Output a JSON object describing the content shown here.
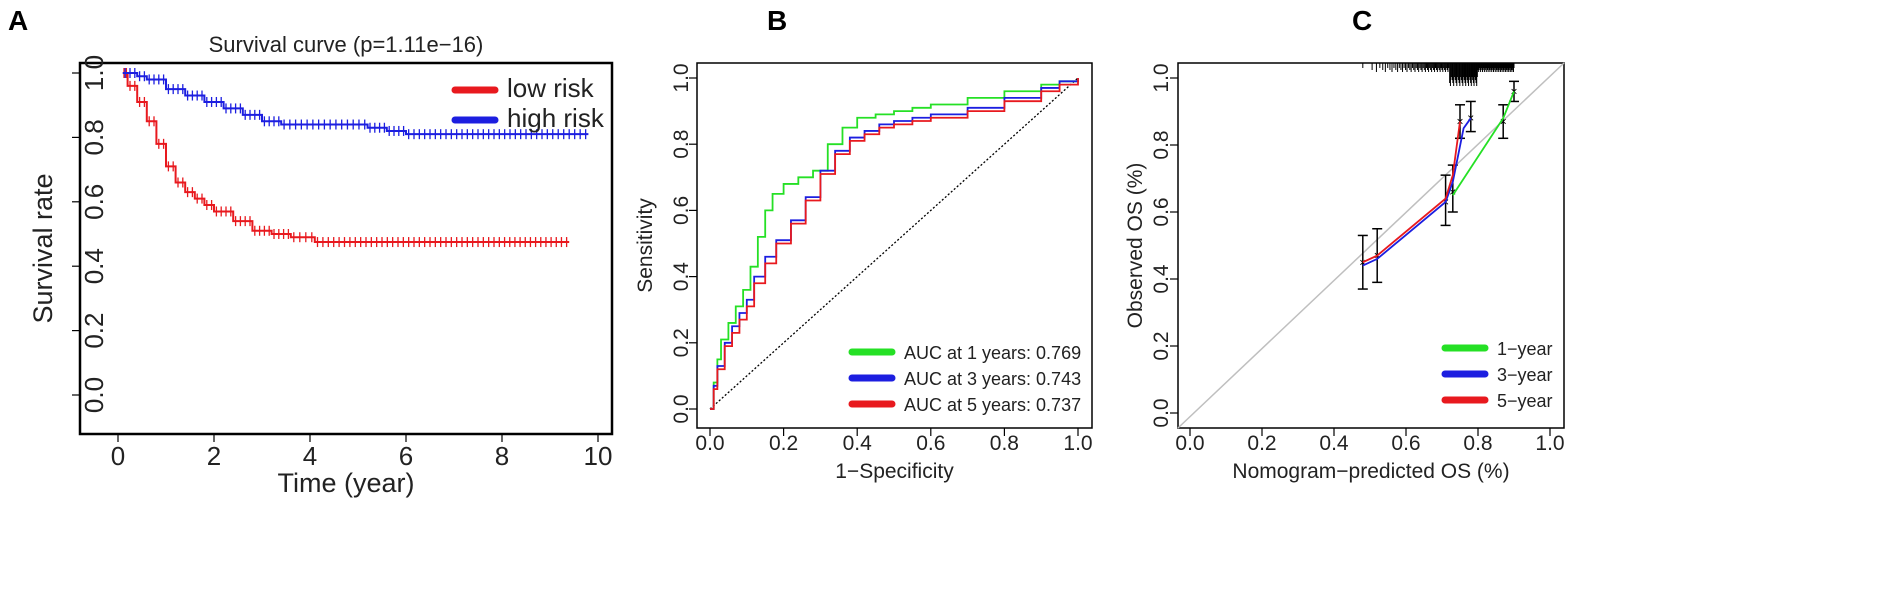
{
  "panels": {
    "a": "A",
    "b": "B",
    "c": "C"
  },
  "colors": {
    "red": "#e8191e",
    "blue": "#1c1ee0",
    "green": "#25e025",
    "black": "#000000",
    "diag_c": "#bfbfbf"
  },
  "chart_data": [
    {
      "id": "A",
      "type": "line",
      "title": "Survival curve (p=1.11e−16)",
      "xlabel": "Time (year)",
      "ylabel": "Survival rate",
      "xlim": [
        0,
        10
      ],
      "ylim": [
        0,
        1
      ],
      "x_ticks": [
        "0",
        "2",
        "4",
        "6",
        "8",
        "10"
      ],
      "y_ticks": [
        "0.0",
        "0.2",
        "0.4",
        "0.6",
        "0.8",
        "1.0"
      ],
      "legend_position": "top-right",
      "series": [
        {
          "name": "low risk",
          "color": "#e8191e",
          "x": [
            0.1,
            0.2,
            0.4,
            0.6,
            0.8,
            1.0,
            1.2,
            1.4,
            1.6,
            1.8,
            2.0,
            2.4,
            2.8,
            3.2,
            3.6,
            4.1,
            5.0,
            6.0,
            7.0,
            8.0,
            9.4
          ],
          "y": [
            1.0,
            0.96,
            0.91,
            0.85,
            0.78,
            0.71,
            0.66,
            0.63,
            0.61,
            0.59,
            0.57,
            0.54,
            0.51,
            0.5,
            0.49,
            0.475,
            0.475,
            0.475,
            0.475,
            0.475,
            0.475
          ]
        },
        {
          "name": "high risk",
          "color": "#1c1ee0",
          "x": [
            0.1,
            0.4,
            0.6,
            1.0,
            1.4,
            1.8,
            2.2,
            2.6,
            3.0,
            3.4,
            4.0,
            4.6,
            5.2,
            5.6,
            6.0,
            7.0,
            8.0,
            9.0,
            9.8
          ],
          "y": [
            1.0,
            0.99,
            0.98,
            0.95,
            0.93,
            0.91,
            0.89,
            0.87,
            0.85,
            0.84,
            0.84,
            0.84,
            0.83,
            0.82,
            0.81,
            0.81,
            0.81,
            0.81,
            0.81
          ]
        }
      ]
    },
    {
      "id": "B",
      "type": "line",
      "title": "",
      "xlabel": "1−Specificity",
      "ylabel": "Sensitivity",
      "xlim": [
        0,
        1
      ],
      "ylim": [
        0,
        1
      ],
      "x_ticks": [
        "0.0",
        "0.2",
        "0.4",
        "0.6",
        "0.8",
        "1.0"
      ],
      "y_ticks": [
        "0.0",
        "0.2",
        "0.4",
        "0.6",
        "0.8",
        "1.0"
      ],
      "legend_position": "bottom-right",
      "series": [
        {
          "name": "AUC at 1 years: 0.769",
          "color": "#25e025",
          "x": [
            0,
            0.01,
            0.02,
            0.03,
            0.05,
            0.07,
            0.09,
            0.11,
            0.13,
            0.15,
            0.17,
            0.2,
            0.24,
            0.28,
            0.32,
            0.36,
            0.4,
            0.45,
            0.5,
            0.55,
            0.6,
            0.7,
            0.8,
            0.9,
            0.95,
            1.0
          ],
          "y": [
            0,
            0.08,
            0.15,
            0.21,
            0.26,
            0.31,
            0.36,
            0.43,
            0.52,
            0.6,
            0.65,
            0.68,
            0.7,
            0.72,
            0.8,
            0.85,
            0.88,
            0.89,
            0.9,
            0.91,
            0.92,
            0.94,
            0.96,
            0.98,
            0.99,
            1.0
          ]
        },
        {
          "name": "AUC at 3 years: 0.743",
          "color": "#1c1ee0",
          "x": [
            0,
            0.01,
            0.02,
            0.04,
            0.06,
            0.08,
            0.1,
            0.12,
            0.15,
            0.18,
            0.22,
            0.26,
            0.3,
            0.34,
            0.38,
            0.42,
            0.46,
            0.5,
            0.55,
            0.6,
            0.7,
            0.8,
            0.9,
            0.95,
            1.0
          ],
          "y": [
            0,
            0.07,
            0.13,
            0.2,
            0.25,
            0.29,
            0.33,
            0.4,
            0.46,
            0.51,
            0.57,
            0.64,
            0.72,
            0.78,
            0.82,
            0.84,
            0.86,
            0.87,
            0.88,
            0.89,
            0.91,
            0.94,
            0.97,
            0.99,
            1.0
          ]
        },
        {
          "name": "AUC at 5 years: 0.737",
          "color": "#e8191e",
          "x": [
            0,
            0.01,
            0.02,
            0.04,
            0.06,
            0.08,
            0.1,
            0.12,
            0.15,
            0.18,
            0.22,
            0.26,
            0.3,
            0.34,
            0.38,
            0.42,
            0.46,
            0.5,
            0.55,
            0.6,
            0.7,
            0.8,
            0.9,
            0.95,
            1.0
          ],
          "y": [
            0,
            0.06,
            0.12,
            0.19,
            0.23,
            0.27,
            0.31,
            0.38,
            0.44,
            0.5,
            0.56,
            0.63,
            0.71,
            0.77,
            0.81,
            0.83,
            0.85,
            0.86,
            0.87,
            0.88,
            0.9,
            0.93,
            0.96,
            0.98,
            1.0
          ]
        }
      ]
    },
    {
      "id": "C",
      "type": "line",
      "title": "",
      "xlabel": "Nomogram−predicted OS (%)",
      "ylabel": "Observed OS (%)",
      "xlim": [
        0,
        1
      ],
      "ylim": [
        0,
        1
      ],
      "x_ticks": [
        "0.0",
        "0.2",
        "0.4",
        "0.6",
        "0.8",
        "1.0"
      ],
      "y_ticks": [
        "0.0",
        "0.2",
        "0.4",
        "0.6",
        "0.8",
        "1.0"
      ],
      "legend_position": "bottom-right",
      "series": [
        {
          "name": "1−year",
          "color": "#25e025",
          "x": [
            0.73,
            0.87,
            0.9
          ],
          "y": [
            0.65,
            0.88,
            0.96
          ]
        },
        {
          "name": "3−year",
          "color": "#1c1ee0",
          "x": [
            0.48,
            0.52,
            0.71,
            0.73,
            0.76,
            0.78
          ],
          "y": [
            0.44,
            0.46,
            0.63,
            0.69,
            0.85,
            0.88
          ]
        },
        {
          "name": "5−year",
          "color": "#e8191e",
          "x": [
            0.48,
            0.52,
            0.71,
            0.73,
            0.75
          ],
          "y": [
            0.45,
            0.47,
            0.64,
            0.71,
            0.87
          ]
        }
      ],
      "error_bars": [
        {
          "x": 0.48,
          "y": 0.45,
          "low": 0.37,
          "high": 0.53
        },
        {
          "x": 0.52,
          "y": 0.47,
          "low": 0.39,
          "high": 0.55
        },
        {
          "x": 0.71,
          "y": 0.63,
          "low": 0.56,
          "high": 0.71
        },
        {
          "x": 0.73,
          "y": 0.66,
          "low": 0.6,
          "high": 0.74
        },
        {
          "x": 0.75,
          "y": 0.87,
          "low": 0.82,
          "high": 0.92
        },
        {
          "x": 0.78,
          "y": 0.88,
          "low": 0.84,
          "high": 0.93
        },
        {
          "x": 0.87,
          "y": 0.87,
          "low": 0.82,
          "high": 0.92
        },
        {
          "x": 0.9,
          "y": 0.96,
          "low": 0.93,
          "high": 0.99
        }
      ]
    }
  ]
}
